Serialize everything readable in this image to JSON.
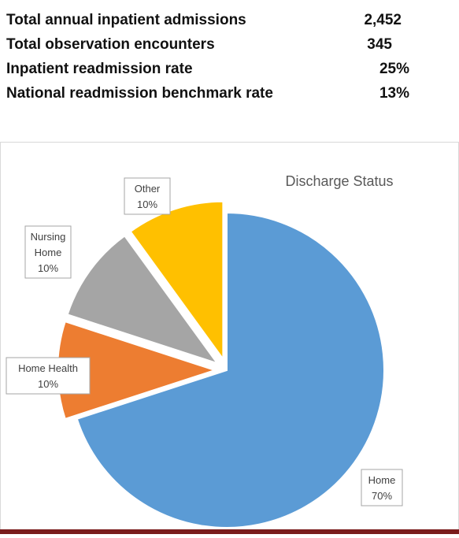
{
  "stats": [
    {
      "label": "Total annual inpatient admissions",
      "value": "2,452"
    },
    {
      "label": "Total observation encounters",
      "value": "345"
    },
    {
      "label": "Inpatient readmission rate",
      "value": "25%"
    },
    {
      "label": "National readmission benchmark rate",
      "value": "13%"
    }
  ],
  "chart_data": {
    "type": "pie",
    "title": "Discharge Status",
    "slices": [
      {
        "label": "Home",
        "value": 70,
        "pct_label": "70%",
        "color": "#5b9bd5",
        "exploded": false
      },
      {
        "label": "Home Health",
        "value": 10,
        "pct_label": "10%",
        "color": "#ed7d31",
        "exploded": true
      },
      {
        "label": "Nursing Home",
        "value": 10,
        "pct_label": "10%",
        "color": "#a5a5a5",
        "exploded": true
      },
      {
        "label": "Other",
        "value": 10,
        "pct_label": "10%",
        "color": "#ffc000",
        "exploded": true
      }
    ]
  },
  "colors": {
    "bottom_bar": "#7a1c1c",
    "label_border": "#a6a6a6",
    "title_text": "#595959"
  }
}
